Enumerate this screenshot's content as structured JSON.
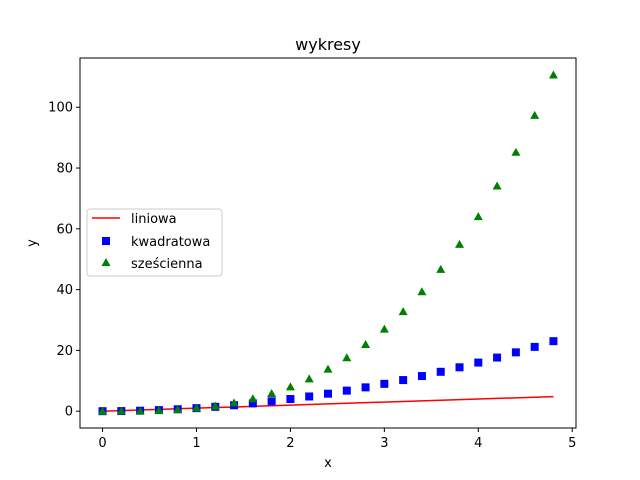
{
  "chart_data": {
    "type": "scatter",
    "title": "wykresy",
    "xlabel": "x",
    "ylabel": "y",
    "xlim": [
      -0.24,
      5.04
    ],
    "ylim": [
      -5.53,
      116.2
    ],
    "xticks": [
      0,
      1,
      2,
      3,
      4,
      5
    ],
    "yticks": [
      0,
      20,
      40,
      60,
      80,
      100
    ],
    "grid": false,
    "legend_position": "center-left",
    "x": [
      0,
      0.2,
      0.4,
      0.6,
      0.8,
      1.0,
      1.2,
      1.4,
      1.6,
      1.8,
      2.0,
      2.2,
      2.4,
      2.6,
      2.8,
      3.0,
      3.2,
      3.4,
      3.6,
      3.8,
      4.0,
      4.2,
      4.4,
      4.6,
      4.8
    ],
    "series": [
      {
        "name": "liniowa",
        "style": "line",
        "color": "#ff0000",
        "values": [
          0,
          0.2,
          0.4,
          0.6,
          0.8,
          1.0,
          1.2,
          1.4,
          1.6,
          1.8,
          2.0,
          2.2,
          2.4,
          2.6,
          2.8,
          3.0,
          3.2,
          3.4,
          3.6,
          3.8,
          4.0,
          4.2,
          4.4,
          4.6,
          4.8
        ]
      },
      {
        "name": "kwadratowa",
        "style": "square",
        "color": "#0000ff",
        "values": [
          0,
          0.04,
          0.16,
          0.36,
          0.64,
          1.0,
          1.44,
          1.96,
          2.56,
          3.24,
          4.0,
          4.84,
          5.76,
          6.76,
          7.84,
          9.0,
          10.24,
          11.56,
          12.96,
          14.44,
          16.0,
          17.64,
          19.36,
          21.16,
          23.04
        ]
      },
      {
        "name": "sześcienna",
        "style": "triangle",
        "color": "#008000",
        "values": [
          0,
          0.008,
          0.064,
          0.216,
          0.512,
          1.0,
          1.728,
          2.744,
          4.096,
          5.832,
          8.0,
          10.648,
          13.824,
          17.576,
          21.952,
          27.0,
          32.768,
          39.304,
          46.656,
          54.872,
          64.0,
          74.088,
          85.184,
          97.336,
          110.592
        ]
      }
    ]
  }
}
